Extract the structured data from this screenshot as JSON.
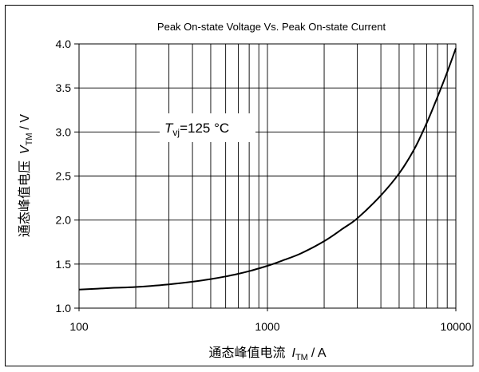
{
  "chart_data": {
    "type": "line",
    "title": "Peak On-state Voltage Vs. Peak On-state Current",
    "x_scale": "log",
    "xlim": [
      100,
      10000
    ],
    "ylim": [
      1.0,
      4.0
    ],
    "grid": true,
    "x_tick_labels": [
      "100",
      "1000",
      "10000"
    ],
    "y_tick_labels": [
      "1.0",
      "1.5",
      "2.0",
      "2.5",
      "3.0",
      "3.5",
      "4.0"
    ],
    "xlabel": {
      "prefix": "通态峰值电流",
      "symbol": "I",
      "sub": "TM",
      "unit": "/ A"
    },
    "ylabel": {
      "prefix": "通态峰值电压",
      "symbol": "V",
      "sub": "TM",
      "unit": "/ V"
    },
    "annotation": {
      "symbol": "T",
      "sub": "vj",
      "text": "=125  °C"
    },
    "series": [
      {
        "x": [
          100,
          150,
          200,
          300,
          400,
          500,
          600,
          700,
          800,
          1000,
          1200,
          1500,
          2000,
          2500,
          3000,
          4000,
          5000,
          6000,
          7000,
          8000,
          9000,
          10000
        ],
        "y": [
          1.21,
          1.23,
          1.24,
          1.27,
          1.3,
          1.33,
          1.36,
          1.39,
          1.42,
          1.48,
          1.54,
          1.62,
          1.76,
          1.9,
          2.02,
          2.28,
          2.53,
          2.8,
          3.1,
          3.4,
          3.68,
          3.95
        ],
        "color": "#000000"
      }
    ]
  }
}
